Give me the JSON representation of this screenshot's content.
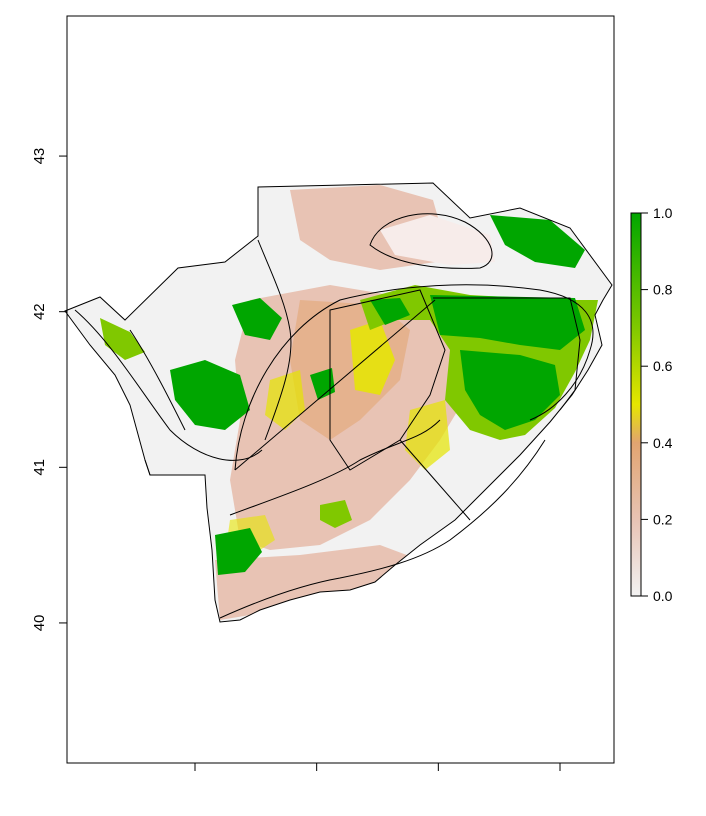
{
  "map": {
    "y_axis": {
      "ticks": [
        {
          "label": "40",
          "value": 40
        },
        {
          "label": "41",
          "value": 41
        },
        {
          "label": "42",
          "value": 42
        },
        {
          "label": "43",
          "value": 43
        }
      ],
      "range": [
        39.1,
        43.9
      ]
    },
    "x_axis": {
      "tick_count": 4,
      "tick_labels_visible": false
    },
    "colorbar": {
      "ticks": [
        {
          "label": "0.0",
          "value": 0.0
        },
        {
          "label": "0.2",
          "value": 0.2
        },
        {
          "label": "0.4",
          "value": 0.4
        },
        {
          "label": "0.6",
          "value": 0.6
        },
        {
          "label": "0.8",
          "value": 0.8
        },
        {
          "label": "1.0",
          "value": 1.0
        }
      ],
      "range": [
        0,
        1
      ],
      "colors": [
        "#f2f2f2",
        "#e8c3b4",
        "#e1a470",
        "#e6e600",
        "#80c800",
        "#00a600"
      ]
    },
    "colors": {
      "low": "#f2f2f2",
      "pink": "#e8c3b4",
      "tan": "#e1a470",
      "yellow": "#e6e600",
      "light_green": "#80c800",
      "green": "#00a600",
      "outline": "#000000"
    }
  }
}
